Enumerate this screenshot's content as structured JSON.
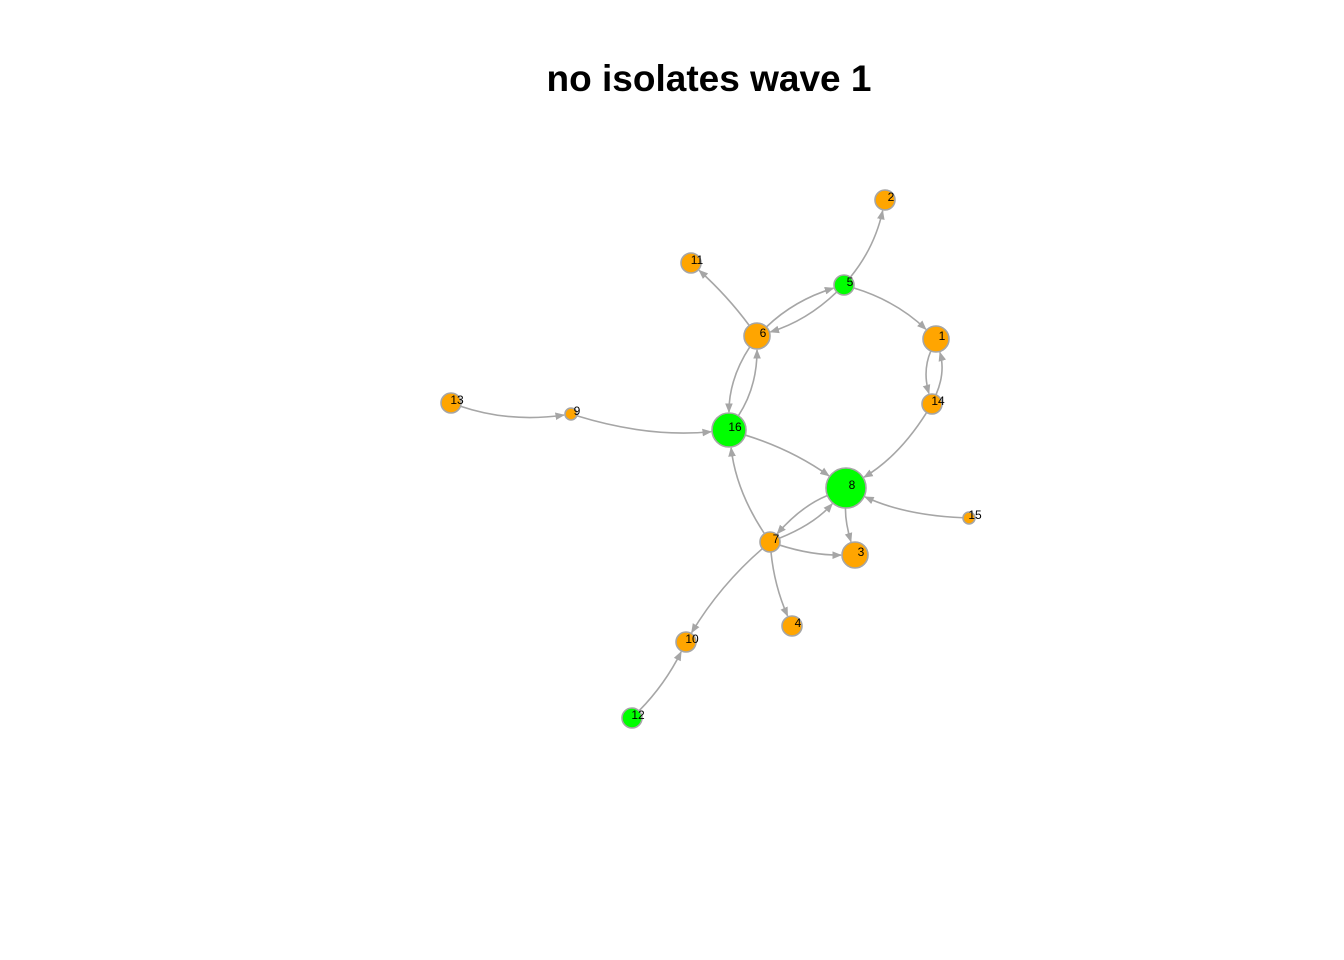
{
  "title": "no isolates wave 1",
  "colors": {
    "orange_node": "#ffa500",
    "green_node": "#00ff00",
    "node_border": "#a6a6a6",
    "edge": "#a6a6a6"
  },
  "nodes": [
    {
      "id": "1",
      "label": "1",
      "color": "orange"
    },
    {
      "id": "2",
      "label": "2",
      "color": "orange"
    },
    {
      "id": "3",
      "label": "3",
      "color": "orange"
    },
    {
      "id": "4",
      "label": "4",
      "color": "orange"
    },
    {
      "id": "5",
      "label": "5",
      "color": "green"
    },
    {
      "id": "6",
      "label": "6",
      "color": "orange"
    },
    {
      "id": "7",
      "label": "7",
      "color": "orange"
    },
    {
      "id": "8",
      "label": "8",
      "color": "green"
    },
    {
      "id": "9",
      "label": "9",
      "color": "orange"
    },
    {
      "id": "10",
      "label": "10",
      "color": "orange"
    },
    {
      "id": "11",
      "label": "11",
      "color": "orange"
    },
    {
      "id": "12",
      "label": "12",
      "color": "green"
    },
    {
      "id": "13",
      "label": "13",
      "color": "orange"
    },
    {
      "id": "14",
      "label": "14",
      "color": "orange"
    },
    {
      "id": "15",
      "label": "15",
      "color": "orange"
    },
    {
      "id": "16",
      "label": "16",
      "color": "green"
    }
  ],
  "edges": [
    {
      "from": "5",
      "to": "2"
    },
    {
      "from": "6",
      "to": "11"
    },
    {
      "from": "6",
      "to": "5"
    },
    {
      "from": "5",
      "to": "6"
    },
    {
      "from": "5",
      "to": "1"
    },
    {
      "from": "1",
      "to": "14"
    },
    {
      "from": "14",
      "to": "1"
    },
    {
      "from": "14",
      "to": "8"
    },
    {
      "from": "13",
      "to": "9"
    },
    {
      "from": "9",
      "to": "16"
    },
    {
      "from": "6",
      "to": "16"
    },
    {
      "from": "16",
      "to": "6"
    },
    {
      "from": "16",
      "to": "8"
    },
    {
      "from": "7",
      "to": "16"
    },
    {
      "from": "8",
      "to": "7"
    },
    {
      "from": "7",
      "to": "8"
    },
    {
      "from": "7",
      "to": "3"
    },
    {
      "from": "8",
      "to": "3"
    },
    {
      "from": "15",
      "to": "8"
    },
    {
      "from": "7",
      "to": "4"
    },
    {
      "from": "7",
      "to": "10"
    },
    {
      "from": "12",
      "to": "10"
    }
  ]
}
